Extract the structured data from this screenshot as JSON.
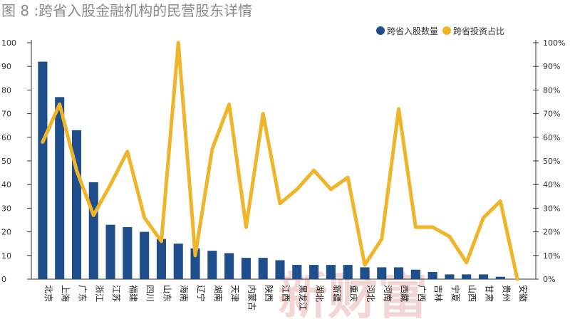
{
  "title": "图 8 :跨省入股金融机构的民营股东详情",
  "legend": {
    "series1": "跨省入股数量",
    "series2": "跨省投资占比"
  },
  "colors": {
    "bar": "#1f4e8c",
    "line": "#f0b429",
    "axis": "#333333"
  },
  "watermark": "新财富",
  "chart_data": {
    "type": "bar",
    "categories": [
      "北京",
      "上海",
      "广东",
      "浙江",
      "江苏",
      "福建",
      "四川",
      "山东",
      "海南",
      "辽宁",
      "湖南",
      "天津",
      "内蒙古",
      "陕西",
      "江西",
      "黑龙江",
      "湖北",
      "新疆",
      "重庆",
      "河北",
      "河南",
      "西藏",
      "广西",
      "吉林",
      "宁夏",
      "山西",
      "甘肃",
      "贵州",
      "安徽"
    ],
    "left_axis": {
      "ylim": [
        0,
        100
      ],
      "ticks": [
        "0",
        "10",
        "20",
        "30",
        "40",
        "50",
        "60",
        "70",
        "80",
        "90",
        "100"
      ]
    },
    "right_axis": {
      "ylim": [
        0,
        100
      ],
      "ticks": [
        "0%",
        "10%",
        "20%",
        "30%",
        "40%",
        "50%",
        "60%",
        "70%",
        "80%",
        "90%",
        "100%"
      ]
    },
    "series": [
      {
        "name": "跨省入股数量",
        "type": "bar",
        "axis": "left",
        "values": [
          92,
          77,
          63,
          41,
          23,
          22,
          20,
          17,
          15,
          13,
          12,
          11,
          9,
          9,
          8,
          6,
          6,
          6,
          6,
          5,
          5,
          5,
          4,
          3,
          2,
          2,
          2,
          1,
          0
        ]
      },
      {
        "name": "跨省投资占比",
        "type": "line",
        "axis": "right",
        "values": [
          58,
          74,
          46,
          27,
          40,
          54,
          26,
          16,
          100,
          10,
          55,
          74,
          22,
          70,
          32,
          38,
          46,
          38,
          43,
          6,
          17,
          72,
          22,
          22,
          18,
          7,
          26,
          33,
          0
        ]
      }
    ]
  }
}
